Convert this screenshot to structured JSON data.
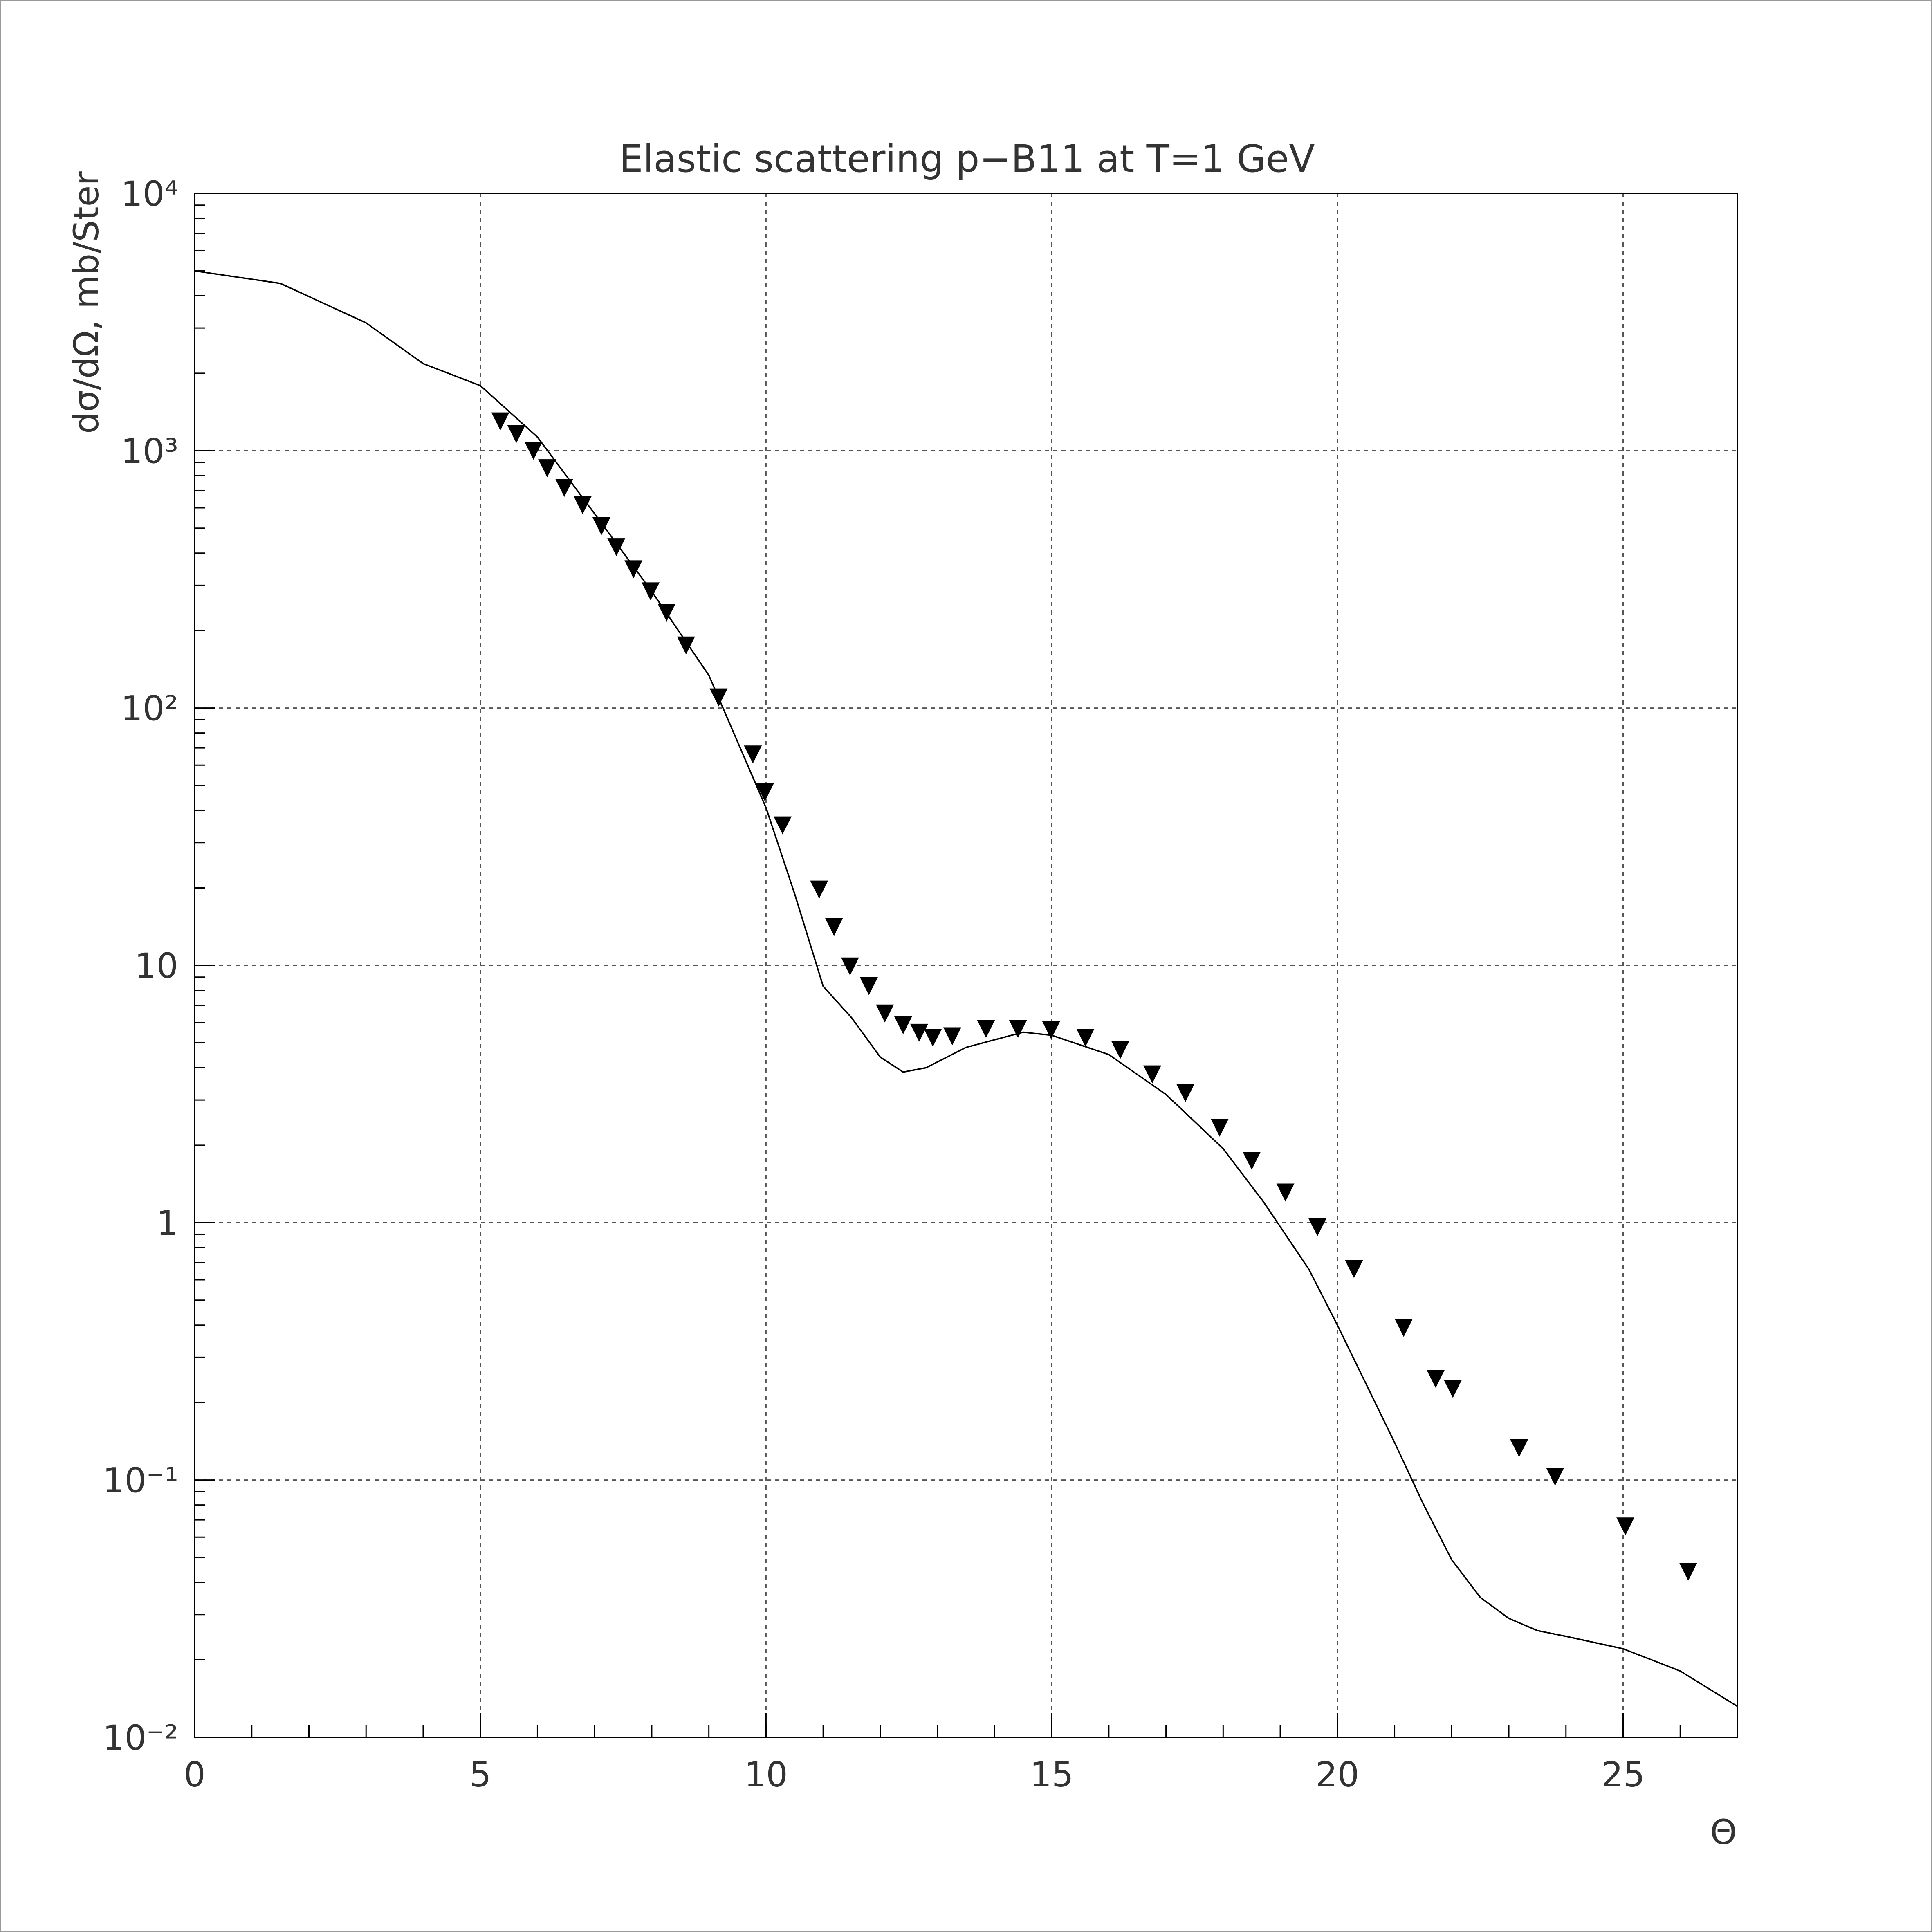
{
  "chart_data": {
    "type": "line",
    "title": "Elastic scattering p−B11 at T=1 GeV",
    "x_label": "Θ",
    "y_label": "dσ/dΩ, mb/Ster",
    "xlim": [
      0,
      27
    ],
    "xticks": [
      0,
      5,
      10,
      15,
      20,
      25
    ],
    "ylim": [
      0.01,
      10000
    ],
    "yticks": [
      {
        "value": 0.01,
        "label": "10⁻²"
      },
      {
        "value": 0.1,
        "label": "10⁻¹"
      },
      1,
      10,
      {
        "value": 100,
        "label": "10²"
      },
      {
        "value": 1000,
        "label": "10³"
      },
      {
        "value": 10000,
        "label": "10⁴"
      }
    ],
    "log_y": true,
    "grid": true,
    "series": [
      {
        "mode": "line",
        "color": "#000000",
        "x": [
          0,
          1.5,
          3,
          4,
          5,
          6,
          7,
          8,
          9,
          10,
          10.5,
          11,
          11.5,
          12,
          12.4,
          12.8,
          13.5,
          14.5,
          15,
          16,
          17,
          18,
          18.7,
          19.5,
          20,
          21,
          21.5,
          22,
          22.5,
          23,
          23.5,
          24,
          25,
          26,
          27
        ],
        "values": [
          5000,
          4470,
          3140,
          2180,
          1790,
          1130,
          569,
          284,
          134,
          41,
          19,
          8.3,
          6.25,
          4.4,
          3.85,
          4.0,
          4.8,
          5.5,
          5.35,
          4.5,
          3.15,
          1.94,
          1.21,
          0.66,
          0.4,
          0.14,
          0.081,
          0.049,
          0.035,
          0.029,
          0.026,
          0.0247,
          0.0221,
          0.0181,
          0.0132
        ]
      },
      {
        "mode": "markers",
        "marker": "triangle-down",
        "color": "#000000",
        "x": [
          5.35,
          5.63,
          5.93,
          6.17,
          6.47,
          6.79,
          7.12,
          7.38,
          7.68,
          7.98,
          8.26,
          8.6,
          9.17,
          9.77,
          9.98,
          10.29,
          10.93,
          11.19,
          11.47,
          11.8,
          12.08,
          12.4,
          12.68,
          12.92,
          13.26,
          13.85,
          14.41,
          14.99,
          15.59,
          16.2,
          16.76,
          17.34,
          17.94,
          18.5,
          19.09,
          19.65,
          20.29,
          21.16,
          21.72,
          22.02,
          23.18,
          23.81,
          25.04,
          26.14
        ],
        "values": [
          1300,
          1160,
          1000,
          855,
          717,
          614,
          509,
          422,
          346,
          284,
          235,
          175,
          110,
          66,
          47,
          35,
          19.7,
          14.1,
          9.9,
          8.3,
          6.5,
          5.85,
          5.47,
          5.23,
          5.3,
          5.66,
          5.66,
          5.6,
          5.23,
          4.69,
          3.77,
          3.19,
          2.34,
          1.74,
          1.31,
          0.96,
          0.66,
          0.39,
          0.247,
          0.226,
          0.133,
          0.103,
          0.066,
          0.044
        ]
      }
    ]
  }
}
